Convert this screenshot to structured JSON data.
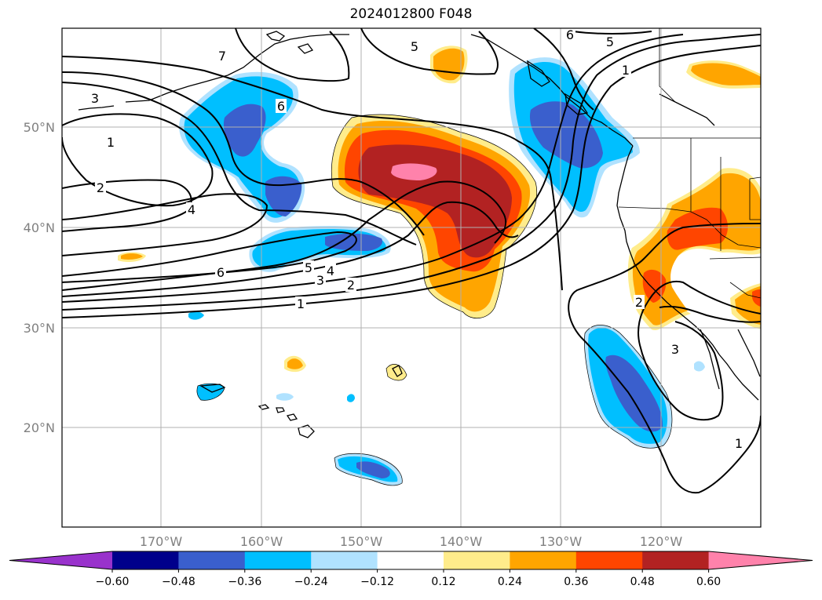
{
  "title": "2024012800 F048",
  "lat_labels": [
    "50°N",
    "40°N",
    "30°N",
    "20°N"
  ],
  "lon_labels": [
    "170°W",
    "160°W",
    "150°W",
    "140°W",
    "130°W",
    "120°W"
  ],
  "colorbar": {
    "ticks": [
      "−0.60",
      "−0.48",
      "−0.36",
      "−0.24",
      "−0.12",
      "0.12",
      "0.24",
      "0.36",
      "0.48",
      "0.60"
    ],
    "colors": [
      "#9932CC",
      "#00008B",
      "#3A5FCD",
      "#00BFFF",
      "#B0E2FF",
      "#FFFFFF",
      "#FFEC8B",
      "#FFA500",
      "#FF4500",
      "#B22222",
      "#FF82AB"
    ]
  },
  "contour_labels": [
    "7",
    "3",
    "1",
    "2",
    "4",
    "6",
    "5",
    "4",
    "3",
    "2",
    "1",
    "5",
    "6",
    "5",
    "1",
    "2",
    "3",
    "1"
  ],
  "fill_colors": {
    "land": "#FFFFFF",
    "ocean": "#FFFFFF",
    "grid": "#B0B0B0",
    "contour": "#000000"
  }
}
